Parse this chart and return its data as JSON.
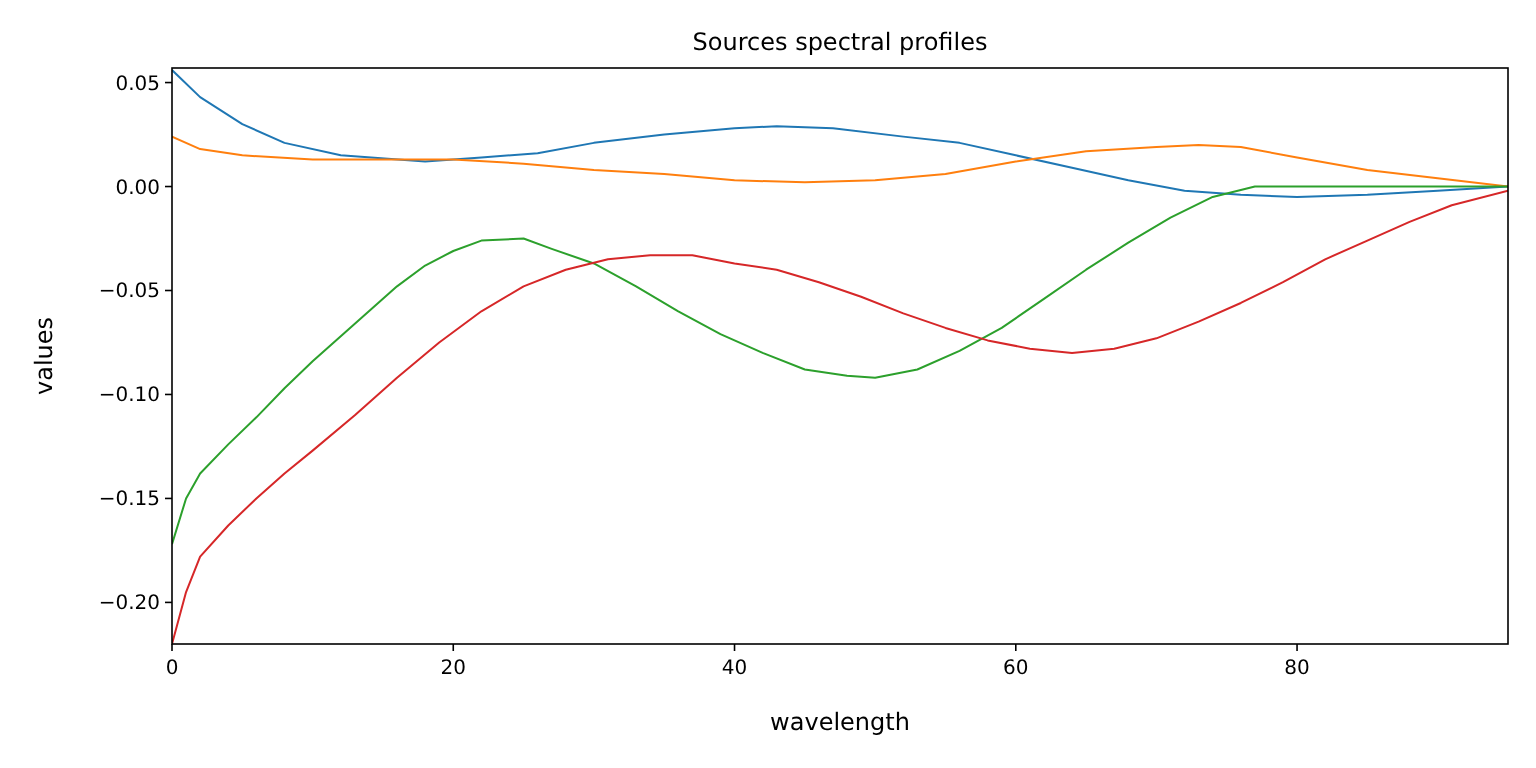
{
  "chart_data": {
    "type": "line",
    "title": "Sources spectral profiles",
    "xlabel": "wavelength",
    "ylabel": "values",
    "xlim": [
      0,
      95
    ],
    "ylim": [
      -0.22,
      0.057
    ],
    "xticks": [
      0,
      20,
      40,
      60,
      80
    ],
    "yticks": [
      {
        "value": 0.05,
        "label": "0.05"
      },
      {
        "value": 0,
        "label": "0.00"
      },
      {
        "value": -0.05,
        "label": "−0.05"
      },
      {
        "value": -0.1,
        "label": "−0.10"
      },
      {
        "value": -0.15,
        "label": "−0.15"
      },
      {
        "value": -0.2,
        "label": "−0.20"
      }
    ],
    "grid": false,
    "marker": "none",
    "line_style": "solid",
    "series": [
      {
        "color": "#1f77b4",
        "x": [
          0,
          2,
          5,
          8,
          12,
          18,
          22,
          26,
          30,
          35,
          40,
          43,
          47,
          52,
          56,
          60,
          64,
          68,
          72,
          76,
          80,
          85,
          90,
          95
        ],
        "values": [
          0.056,
          0.043,
          0.03,
          0.021,
          0.015,
          0.012,
          0.014,
          0.016,
          0.021,
          0.025,
          0.028,
          0.029,
          0.028,
          0.024,
          0.021,
          0.015,
          0.009,
          0.003,
          -0.002,
          -0.004,
          -0.005,
          -0.004,
          -0.002,
          0.0
        ]
      },
      {
        "color": "#ff7f0e",
        "x": [
          0,
          2,
          5,
          10,
          20,
          25,
          30,
          35,
          40,
          45,
          50,
          55,
          60,
          65,
          70,
          73,
          76,
          80,
          85,
          90,
          95
        ],
        "values": [
          0.024,
          0.018,
          0.015,
          0.013,
          0.013,
          0.011,
          0.008,
          0.006,
          0.003,
          0.002,
          0.003,
          0.006,
          0.012,
          0.017,
          0.019,
          0.02,
          0.019,
          0.014,
          0.008,
          0.004,
          0.0
        ]
      },
      {
        "color": "#2ca02c",
        "x": [
          0,
          1,
          2,
          4,
          6,
          8,
          10,
          12,
          14,
          16,
          18,
          20,
          22,
          25,
          27,
          30,
          33,
          36,
          39,
          42,
          45,
          48,
          50,
          53,
          56,
          59,
          62,
          65,
          68,
          71,
          74,
          77,
          80,
          85,
          90,
          95
        ],
        "values": [
          -0.172,
          -0.15,
          -0.138,
          -0.124,
          -0.111,
          -0.097,
          -0.084,
          -0.072,
          -0.06,
          -0.048,
          -0.038,
          -0.031,
          -0.026,
          -0.025,
          -0.03,
          -0.037,
          -0.048,
          -0.06,
          -0.071,
          -0.08,
          -0.088,
          -0.091,
          -0.092,
          -0.088,
          -0.079,
          -0.068,
          -0.054,
          -0.04,
          -0.027,
          -0.015,
          -0.005,
          0.0,
          0.0,
          0.0,
          0.0,
          0.0
        ]
      },
      {
        "color": "#d62728",
        "x": [
          0,
          1,
          2,
          4,
          6,
          8,
          10,
          13,
          16,
          19,
          22,
          25,
          28,
          31,
          34,
          37,
          40,
          43,
          46,
          49,
          52,
          55,
          58,
          61,
          64,
          67,
          70,
          73,
          76,
          79,
          82,
          85,
          88,
          91,
          95
        ],
        "values": [
          -0.22,
          -0.195,
          -0.178,
          -0.163,
          -0.15,
          -0.138,
          -0.127,
          -0.11,
          -0.092,
          -0.075,
          -0.06,
          -0.048,
          -0.04,
          -0.035,
          -0.033,
          -0.033,
          -0.037,
          -0.04,
          -0.046,
          -0.053,
          -0.061,
          -0.068,
          -0.074,
          -0.078,
          -0.08,
          -0.078,
          -0.073,
          -0.065,
          -0.056,
          -0.046,
          -0.035,
          -0.026,
          -0.017,
          -0.009,
          -0.002
        ]
      }
    ]
  }
}
